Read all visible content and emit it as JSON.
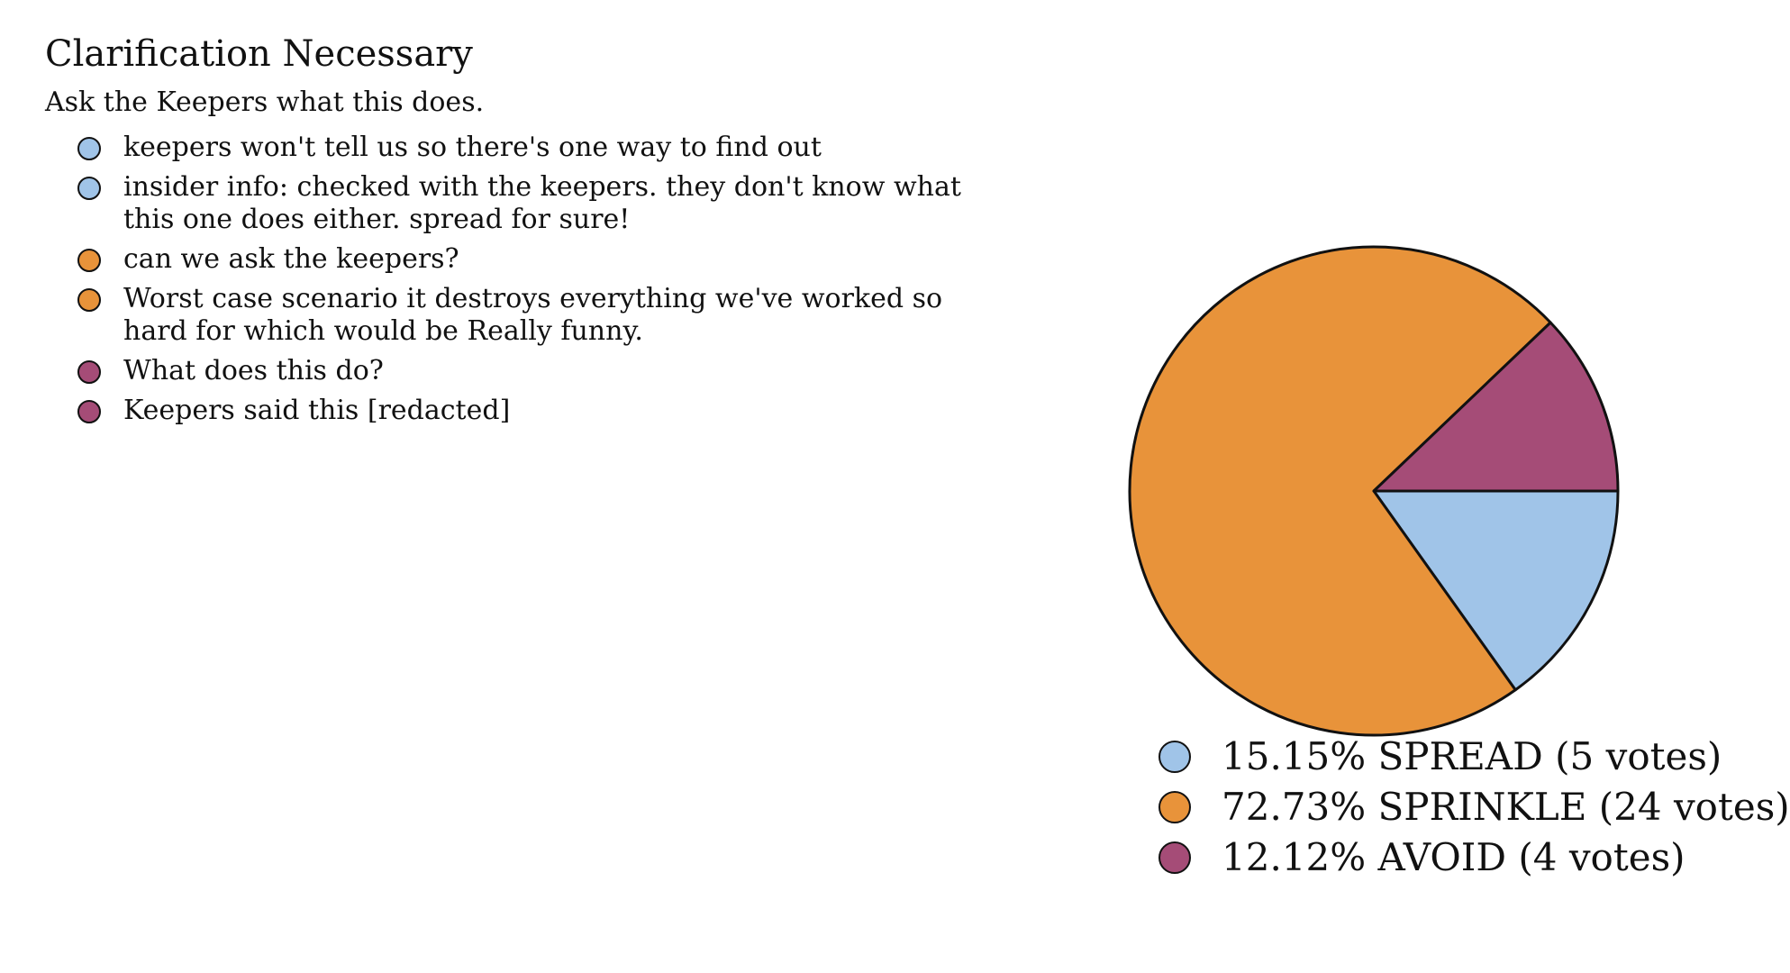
{
  "title": "Clarification Necessary",
  "subtitle": "Ask the Keepers what this does.",
  "comments": [
    {
      "text": "keepers won't tell us so there's one way to find out",
      "color": "#a0c4e8"
    },
    {
      "text": "insider info: checked with the keepers. they don't know what this one does either. spread for sure!",
      "color": "#a0c4e8"
    },
    {
      "text": "can we ask the keepers?",
      "color": "#e8933a"
    },
    {
      "text": "Worst case scenario it destroys everything we've worked so hard for which would be Really funny.",
      "color": "#e8933a"
    },
    {
      "text": "What does this do?",
      "color": "#a54c77"
    },
    {
      "text": "Keepers said this [redacted]",
      "color": "#a54c77"
    }
  ],
  "chart_data": {
    "type": "pie",
    "slices": [
      {
        "label": "SPREAD",
        "votes": 5,
        "percent": 15.15,
        "color": "#a0c4e8",
        "legend_text": "15.15% SPREAD (5 votes)"
      },
      {
        "label": "SPRINKLE",
        "votes": 24,
        "percent": 72.73,
        "color": "#e8933a",
        "legend_text": "72.73% SPRINKLE (24 votes)"
      },
      {
        "label": "AVOID",
        "votes": 4,
        "percent": 12.12,
        "color": "#a54c77",
        "legend_text": "12.12% AVOID (4 votes)"
      }
    ],
    "title": "",
    "legend_position": "bottom"
  }
}
